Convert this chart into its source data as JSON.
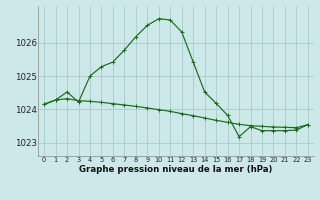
{
  "title": "Graphe pression niveau de la mer (hPa)",
  "background_color": "#cce8e8",
  "grid_color": "#aacccc",
  "line_color": "#1a6b1a",
  "xlim": [
    -0.5,
    23.5
  ],
  "ylim": [
    1022.6,
    1027.1
  ],
  "yticks": [
    1023,
    1024,
    1025,
    1026
  ],
  "xticks": [
    0,
    1,
    2,
    3,
    4,
    5,
    6,
    7,
    8,
    9,
    10,
    11,
    12,
    13,
    14,
    15,
    16,
    17,
    18,
    19,
    20,
    21,
    22,
    23
  ],
  "series1_x": [
    0,
    1,
    2,
    3,
    4,
    5,
    6,
    7,
    8,
    9,
    10,
    11,
    12,
    13,
    14,
    15,
    16,
    17,
    18,
    19,
    20,
    21,
    22,
    23
  ],
  "series1_y": [
    1024.15,
    1024.28,
    1024.32,
    1024.26,
    1024.24,
    1024.21,
    1024.17,
    1024.13,
    1024.09,
    1024.04,
    1023.99,
    1023.94,
    1023.87,
    1023.81,
    1023.74,
    1023.67,
    1023.61,
    1023.55,
    1023.51,
    1023.49,
    1023.47,
    1023.46,
    1023.45,
    1023.54
  ],
  "series2_x": [
    0,
    1,
    2,
    3,
    4,
    5,
    6,
    7,
    8,
    9,
    10,
    11,
    12,
    13,
    14,
    15,
    16,
    17,
    18,
    19,
    20,
    21,
    22,
    23
  ],
  "series2_y": [
    1024.15,
    1024.28,
    1024.52,
    1024.22,
    1025.0,
    1025.28,
    1025.42,
    1025.78,
    1026.18,
    1026.52,
    1026.72,
    1026.68,
    1026.32,
    1025.42,
    1024.52,
    1024.18,
    1023.82,
    1023.18,
    1023.48,
    1023.36,
    1023.36,
    1023.36,
    1023.38,
    1023.54
  ]
}
